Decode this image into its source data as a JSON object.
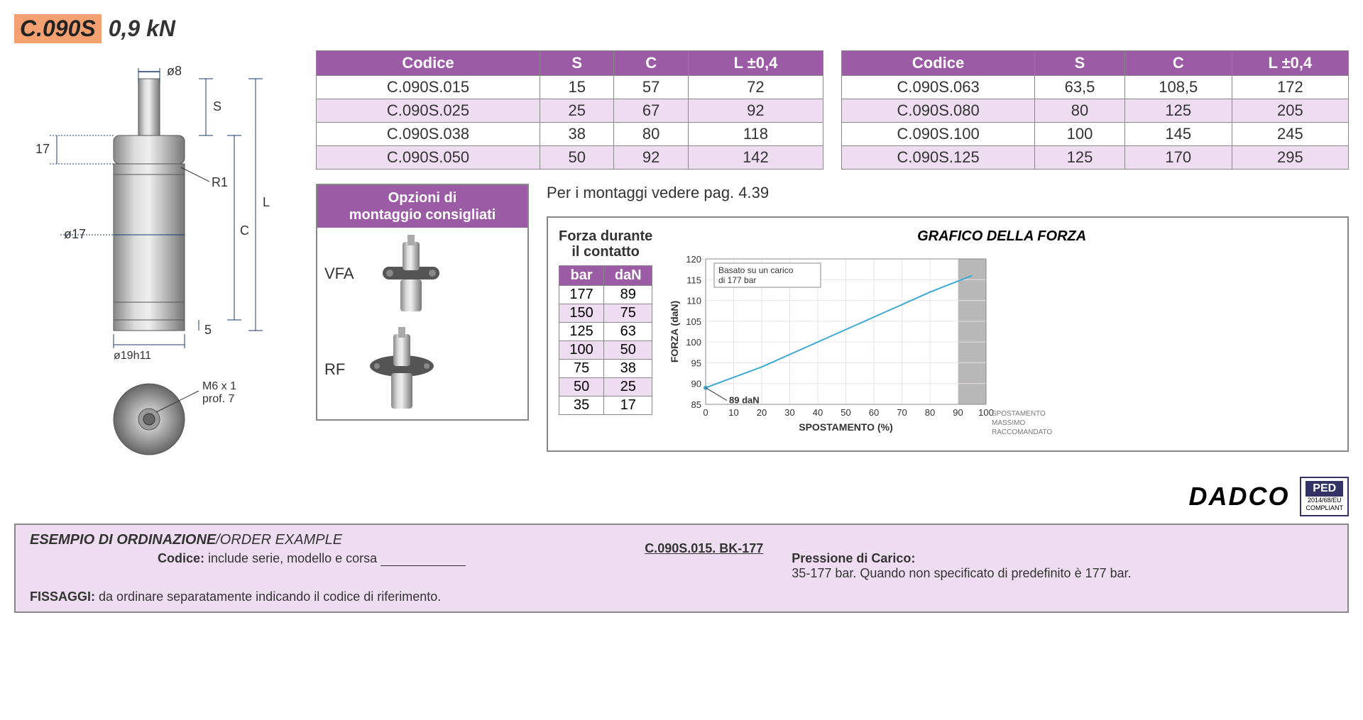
{
  "header": {
    "code": "C.090S",
    "force": "0,9 kN"
  },
  "diagram": {
    "labels": {
      "d_rod": "ø8",
      "S": "S",
      "h_top": "17",
      "R1": "R1",
      "d_body": "ø17",
      "L": "L",
      "C": "C",
      "d_base": "ø19h11",
      "base_h": "5",
      "thread": "M6 x 1\nprof. 7"
    }
  },
  "spec_table": {
    "headers": [
      "Codice",
      "S",
      "C",
      "L ±0,4"
    ],
    "left_rows": [
      [
        "C.090S.015",
        "15",
        "57",
        "72"
      ],
      [
        "C.090S.025",
        "25",
        "67",
        "92"
      ],
      [
        "C.090S.038",
        "38",
        "80",
        "118"
      ],
      [
        "C.090S.050",
        "50",
        "92",
        "142"
      ]
    ],
    "right_rows": [
      [
        "C.090S.063",
        "63,5",
        "108,5",
        "172"
      ],
      [
        "C.090S.080",
        "80",
        "125",
        "205"
      ],
      [
        "C.090S.100",
        "100",
        "145",
        "245"
      ],
      [
        "C.090S.125",
        "125",
        "170",
        "295"
      ]
    ]
  },
  "mount": {
    "title_line1": "Opzioni di",
    "title_line2": "montaggio consigliati",
    "items": [
      "VFA",
      "RF"
    ]
  },
  "note": "Per i montaggi vedere pag. 4.39",
  "force_table": {
    "title_line1": "Forza durante",
    "title_line2": "il contatto",
    "headers": [
      "bar",
      "daN"
    ],
    "rows": [
      [
        "177",
        "89"
      ],
      [
        "150",
        "75"
      ],
      [
        "125",
        "63"
      ],
      [
        "100",
        "50"
      ],
      [
        "75",
        "38"
      ],
      [
        "50",
        "25"
      ],
      [
        "35",
        "17"
      ]
    ]
  },
  "chart": {
    "title": "GRAFICO DELLA FORZA",
    "note_box": "Basato su un carico\ndi 177 bar",
    "ylabel": "FORZA (daN)",
    "xlabel": "SPOSTAMENTO (%)",
    "ylim": [
      85,
      120
    ],
    "ytick_step": 5,
    "yticks": [
      85,
      90,
      95,
      100,
      105,
      110,
      115,
      120
    ],
    "xlim": [
      0,
      100
    ],
    "xtick_step": 10,
    "xticks": [
      0,
      10,
      20,
      30,
      40,
      50,
      60,
      70,
      80,
      90,
      100
    ],
    "line_color": "#3ba9d4",
    "grid_color": "#e8e0e8",
    "shade_x_start": 90,
    "shade_color": "#b8b8b8",
    "point_label": "89 daN",
    "data": [
      {
        "x": 0,
        "y": 89
      },
      {
        "x": 20,
        "y": 94
      },
      {
        "x": 40,
        "y": 100
      },
      {
        "x": 60,
        "y": 106
      },
      {
        "x": 80,
        "y": 112
      },
      {
        "x": 95,
        "y": 116
      }
    ],
    "footer_note": "SPOSTAMENTO\nMASSIMO\nRACCOMANDATO\n90%"
  },
  "brand": {
    "name": "DADCO",
    "ped": "PED",
    "ped_sub": "2014/68/EU\nCOMPLIANT"
  },
  "order": {
    "title_it": "ESEMPIO DI ORDINAZIONE",
    "title_en": "/ORDER EXAMPLE",
    "codice_label": "Codice:",
    "codice_text": "include serie, modello e corsa",
    "example_code": "C.090S.015. BK-177",
    "pressione_label": "Pressione di Carico:",
    "pressione_text": "35-177 bar. Quando non specificato di predefinito è 177 bar.",
    "fissaggi_label": "FISSAGGI:",
    "fissaggi_text": "da ordinare separatamente indicando il codice di riferimento."
  }
}
